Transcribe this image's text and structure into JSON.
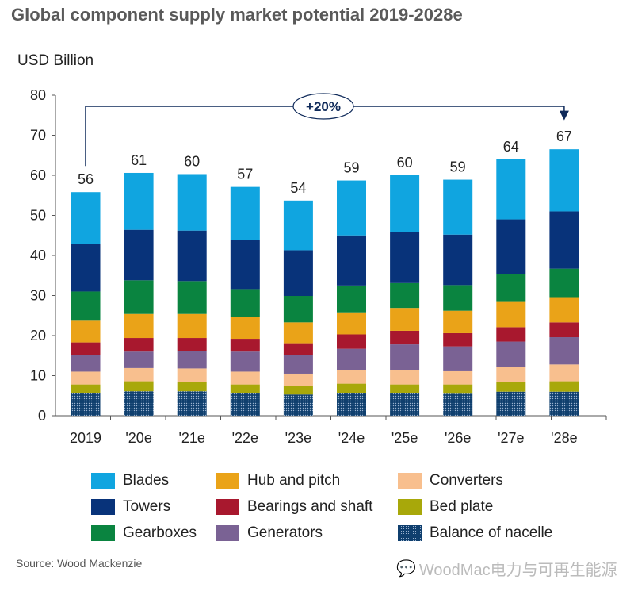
{
  "chart_data": {
    "type": "bar",
    "stacked": true,
    "title": "Global component supply market potential 2019-2028e",
    "ylabel": "USD Billion",
    "ylim": [
      0,
      80
    ],
    "yticks": [
      0,
      10,
      20,
      30,
      40,
      50,
      60,
      70,
      80
    ],
    "grid": false,
    "legend_placement": "bottom",
    "categories": [
      "2019",
      "'20e",
      "'21e",
      "'22e",
      "'23e",
      "'24e",
      "'25e",
      "'26e",
      "'27e",
      "'28e"
    ],
    "totals": [
      56,
      61,
      60,
      57,
      54,
      59,
      60,
      59,
      64,
      67
    ],
    "series": [
      {
        "name": "Balance of nacelle",
        "color": "#0f3f6e",
        "pattern": "dotted",
        "values": [
          5.7,
          6.1,
          6.1,
          5.6,
          5.3,
          5.6,
          5.6,
          5.5,
          6.0,
          6.0
        ]
      },
      {
        "name": "Bed plate",
        "color": "#a8a80a",
        "values": [
          2.1,
          2.5,
          2.4,
          2.2,
          2.1,
          2.4,
          2.2,
          2.3,
          2.5,
          2.6
        ]
      },
      {
        "name": "Converters",
        "color": "#f8bf8e",
        "values": [
          3.2,
          3.3,
          3.3,
          3.2,
          3.1,
          3.3,
          3.6,
          3.3,
          3.6,
          4.2
        ]
      },
      {
        "name": "Generators",
        "color": "#7a6294",
        "values": [
          4.2,
          4.1,
          4.4,
          5.0,
          4.6,
          5.4,
          6.4,
          6.2,
          6.4,
          6.8
        ]
      },
      {
        "name": "Bearings and shaft",
        "color": "#a8182e",
        "values": [
          3.1,
          3.4,
          3.2,
          3.2,
          3.0,
          3.6,
          3.4,
          3.3,
          3.6,
          3.7
        ]
      },
      {
        "name": "Hub and pitch",
        "color": "#eaa318",
        "values": [
          5.6,
          6.0,
          6.0,
          5.5,
          5.2,
          5.5,
          5.7,
          5.6,
          6.3,
          6.3
        ]
      },
      {
        "name": "Gearboxes",
        "color": "#0a8440",
        "values": [
          7.1,
          8.4,
          8.2,
          6.9,
          6.6,
          6.7,
          6.2,
          6.4,
          6.9,
          7.1
        ]
      },
      {
        "name": "Towers",
        "color": "#08337a",
        "values": [
          11.9,
          12.6,
          12.6,
          12.2,
          11.4,
          12.5,
          12.7,
          12.6,
          13.7,
          14.3
        ]
      },
      {
        "name": "Blades",
        "color": "#10a5e0",
        "values": [
          12.9,
          14.2,
          14.1,
          13.3,
          12.4,
          13.7,
          14.2,
          13.7,
          15.0,
          15.5
        ]
      }
    ],
    "annotation": {
      "label": "+20%",
      "from": "2019",
      "to": "'28e"
    }
  },
  "legend_order": [
    "Blades",
    "Hub and pitch",
    "Converters",
    "Towers",
    "Bearings and shaft",
    "Bed plate",
    "Gearboxes",
    "Generators",
    "Balance of nacelle"
  ],
  "source": "Source: Wood Mackenzie",
  "watermark": "WoodMac电力与可再生能源"
}
